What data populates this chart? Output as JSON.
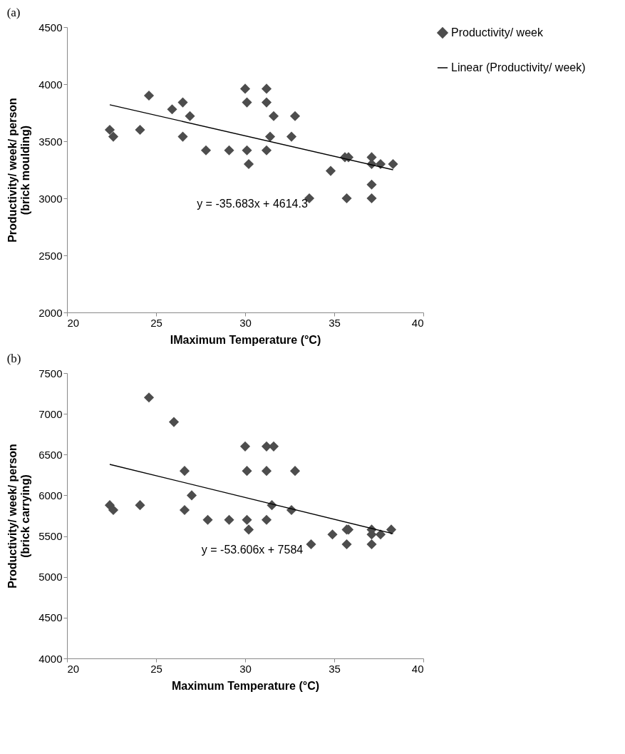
{
  "chart_data": [
    {
      "type": "scatter",
      "title": "(a)",
      "xlabel": "IMaximum Temperature (°C)",
      "ylabel": "Productivity/ week/ person (brick moulding)",
      "xlim": [
        20,
        40
      ],
      "xticks": [
        20,
        25,
        30,
        35,
        40
      ],
      "ylim": [
        2000,
        4500
      ],
      "yticks": [
        2000,
        2500,
        3000,
        3500,
        4000,
        4500
      ],
      "grid": false,
      "legend": "top right",
      "annotations": [
        "y = -35.683x + 4614.3"
      ],
      "series": [
        {
          "name": "Productivity/ week",
          "marker": "diamond",
          "color": "#4d4d4d",
          "x": [
            22.4,
            22.6,
            24.1,
            24.6,
            25.9,
            26.5,
            26.5,
            26.9,
            27.8,
            29.1,
            30,
            30.1,
            30.1,
            30.2,
            31.2,
            31.2,
            31.2,
            31.4,
            31.6,
            32.6,
            32.8,
            33.6,
            34.8,
            35.6,
            35.8,
            35.7,
            37.1,
            37.1,
            37.1,
            37.1,
            37.6,
            38.3
          ],
          "values": [
            3600,
            3540,
            3600,
            3900,
            3780,
            3840,
            3540,
            3720,
            3420,
            3420,
            3960,
            3840,
            3420,
            3300,
            3960,
            3840,
            3420,
            3540,
            3720,
            3540,
            3720,
            3000,
            3240,
            3360,
            3360,
            3000,
            3360,
            3300,
            3120,
            3000,
            3300,
            3300
          ]
        },
        {
          "name": "Linear (Productivity/ week)",
          "type": "line",
          "color": "#000000",
          "line_style": "solid",
          "x": [
            22.4,
            38.3
          ],
          "values": [
            3820,
            3250
          ]
        }
      ]
    },
    {
      "type": "scatter",
      "title": "(b)",
      "xlabel": "Maximum Temperature (°C)",
      "ylabel": "Productivity/ week/ person (brick carrying)",
      "xlim": [
        20,
        40
      ],
      "xticks": [
        20,
        25,
        30,
        35,
        40
      ],
      "ylim": [
        4000,
        7500
      ],
      "yticks": [
        4000,
        4500,
        5000,
        5500,
        6000,
        6500,
        7000,
        7500
      ],
      "grid": false,
      "legend": "top right",
      "annotations": [
        "y = -53.606x + 7584"
      ],
      "series": [
        {
          "name": "Productivity/ week",
          "marker": "diamond",
          "color": "#4d4d4d",
          "x": [
            22.4,
            22.6,
            24.1,
            24.6,
            26,
            26.6,
            26.6,
            27,
            27.9,
            29.1,
            30,
            30.1,
            30.1,
            30.2,
            31.2,
            31.2,
            31.2,
            31.6,
            31.5,
            32.6,
            32.8,
            33.7,
            34.9,
            35.7,
            35.8,
            35.7,
            37.1,
            37.1,
            37.1,
            37.6,
            38.2
          ],
          "values": [
            5880,
            5820,
            5880,
            7200,
            6900,
            6300,
            5820,
            6000,
            5700,
            5700,
            6600,
            6300,
            5700,
            5580,
            6600,
            6300,
            5700,
            6600,
            5880,
            5820,
            6300,
            5400,
            5520,
            5580,
            5580,
            5400,
            5580,
            5520,
            5400,
            5520,
            5580
          ]
        },
        {
          "name": "Linear (Productivity/ week)",
          "type": "line",
          "color": "#000000",
          "line_style": "solid",
          "x": [
            22.4,
            38.3
          ],
          "values": [
            6380,
            5530
          ]
        }
      ]
    }
  ]
}
